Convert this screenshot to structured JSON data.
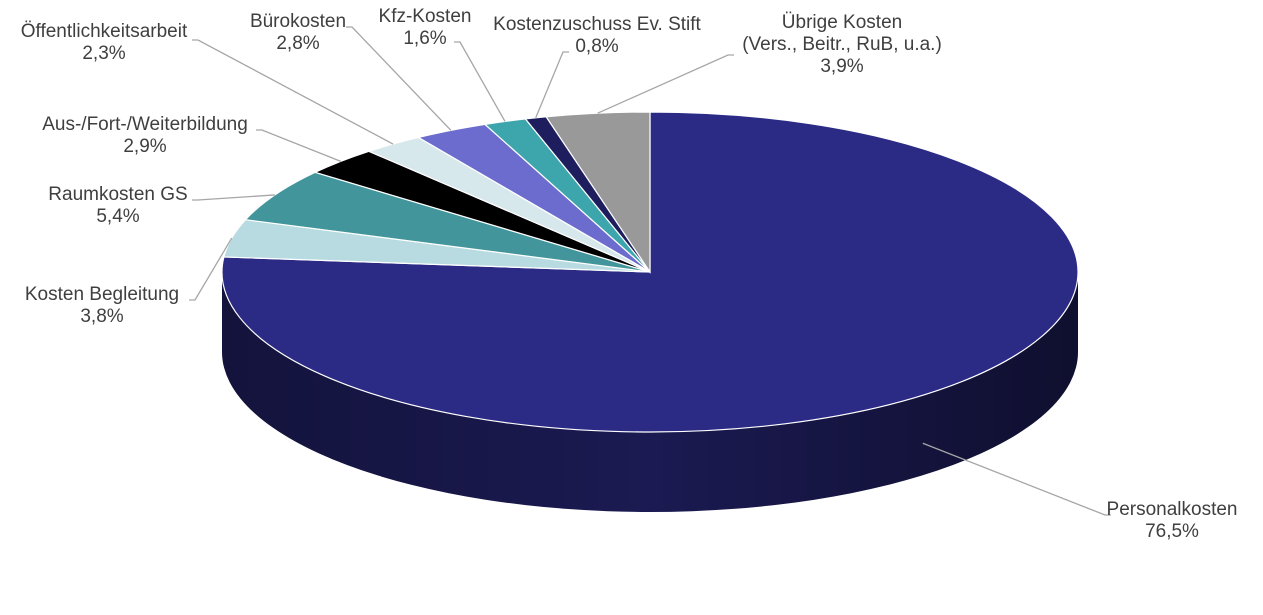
{
  "chart_data": {
    "type": "pie",
    "title": "",
    "style": "3d",
    "start_angle_deg": 0,
    "slices": [
      {
        "label": "Personalkosten",
        "value_label": "76,5%",
        "value": 76.5,
        "color": "#2b2a85"
      },
      {
        "label": "Kosten Begleitung",
        "value_label": "3,8%",
        "value": 3.8,
        "color": "#b8dbe1"
      },
      {
        "label": "Raumkosten GS",
        "value_label": "5,4%",
        "value": 5.4,
        "color": "#41959b"
      },
      {
        "label": "Aus-/Fort-/Weiterbildung",
        "value_label": "2,9%",
        "value": 2.9,
        "color": "#000000"
      },
      {
        "label": "Öffentlichkeitsarbeit",
        "value_label": "2,3%",
        "value": 2.3,
        "color": "#d7e8ec"
      },
      {
        "label": "Bürokosten",
        "value_label": "2,8%",
        "value": 2.8,
        "color": "#6b6ccd"
      },
      {
        "label": "Kfz-Kosten",
        "value_label": "1,6%",
        "value": 1.6,
        "color": "#3da6ad"
      },
      {
        "label": "Kostenzuschuss Ev. Stift",
        "value_label": "0,8%",
        "value": 0.8,
        "color": "#1e1e5e"
      },
      {
        "label": "Übrige Kosten\n(Vers., Beitr., RuB, u.a.)",
        "value_label": "3,9%",
        "value": 3.9,
        "color": "#999999"
      }
    ]
  }
}
